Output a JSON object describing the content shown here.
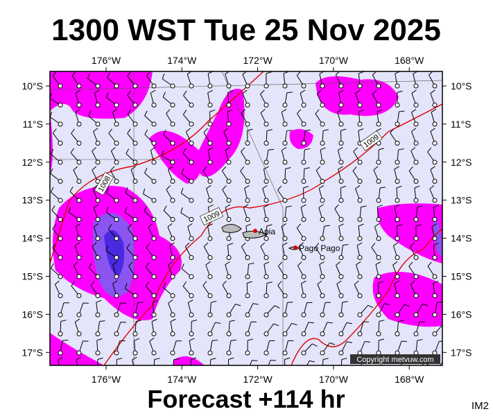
{
  "title": "1300 WST Tue 25 Nov 2025",
  "subtitle": "Forecast +114 hr",
  "image_id": "IM2",
  "copyright": "Copyright metvuw.com",
  "lon_labels": [
    "176°W",
    "174°W",
    "172°W",
    "170°W",
    "168°W"
  ],
  "lat_labels": [
    "10°S",
    "11°S",
    "12°S",
    "13°S",
    "14°S",
    "15°S",
    "16°S",
    "17°S"
  ],
  "places": [
    "Apia",
    "Pago Pago"
  ],
  "isobar_labels": [
    "1008",
    "1009",
    "1009"
  ]
}
